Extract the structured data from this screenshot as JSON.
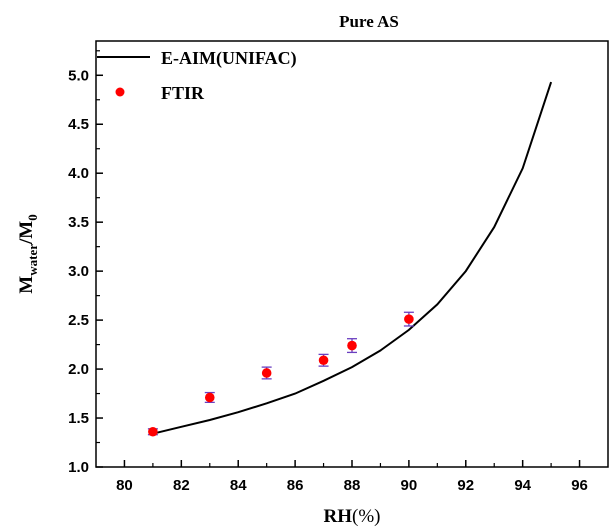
{
  "chart_data": {
    "type": "line",
    "title": "Pure AS",
    "xlabel": {
      "main": "RH",
      "unit": "(%)"
    },
    "ylabel": {
      "base": "M",
      "sub1": "water",
      "sep": "/M",
      "sub2": "0"
    },
    "xlim": [
      79,
      97
    ],
    "ylim": [
      1.0,
      5.35
    ],
    "xticks": [
      80,
      82,
      84,
      86,
      88,
      90,
      92,
      94,
      96
    ],
    "xtick_labels": [
      "80",
      "82",
      "84",
      "86",
      "88",
      "90",
      "92",
      "94",
      "96"
    ],
    "yticks": [
      1.0,
      1.5,
      2.0,
      2.5,
      3.0,
      3.5,
      4.0,
      4.5,
      5.0
    ],
    "ytick_labels": [
      "1.0",
      "1.5",
      "2.0",
      "2.5",
      "3.0",
      "3.5",
      "4.0",
      "4.5",
      "5.0"
    ],
    "grid": false,
    "legend_position": "top-left",
    "series": [
      {
        "name": "E-AIM(UNIFAC)",
        "kind": "line",
        "color": "#000000",
        "x": [
          81,
          82,
          83,
          84,
          85,
          86,
          87,
          88,
          89,
          90,
          91,
          92,
          93,
          94,
          95
        ],
        "y": [
          1.34,
          1.41,
          1.48,
          1.56,
          1.65,
          1.75,
          1.88,
          2.02,
          2.19,
          2.4,
          2.66,
          3.0,
          3.45,
          4.05,
          4.93
        ]
      },
      {
        "name": "FTIR",
        "kind": "scatter",
        "color": "#ff0000",
        "error_color": "#6a3fc0",
        "x": [
          81,
          83,
          85,
          87,
          88,
          90
        ],
        "y": [
          1.36,
          1.71,
          1.96,
          2.09,
          2.24,
          2.51
        ],
        "err": [
          0.03,
          0.05,
          0.06,
          0.06,
          0.07,
          0.07
        ]
      }
    ]
  }
}
